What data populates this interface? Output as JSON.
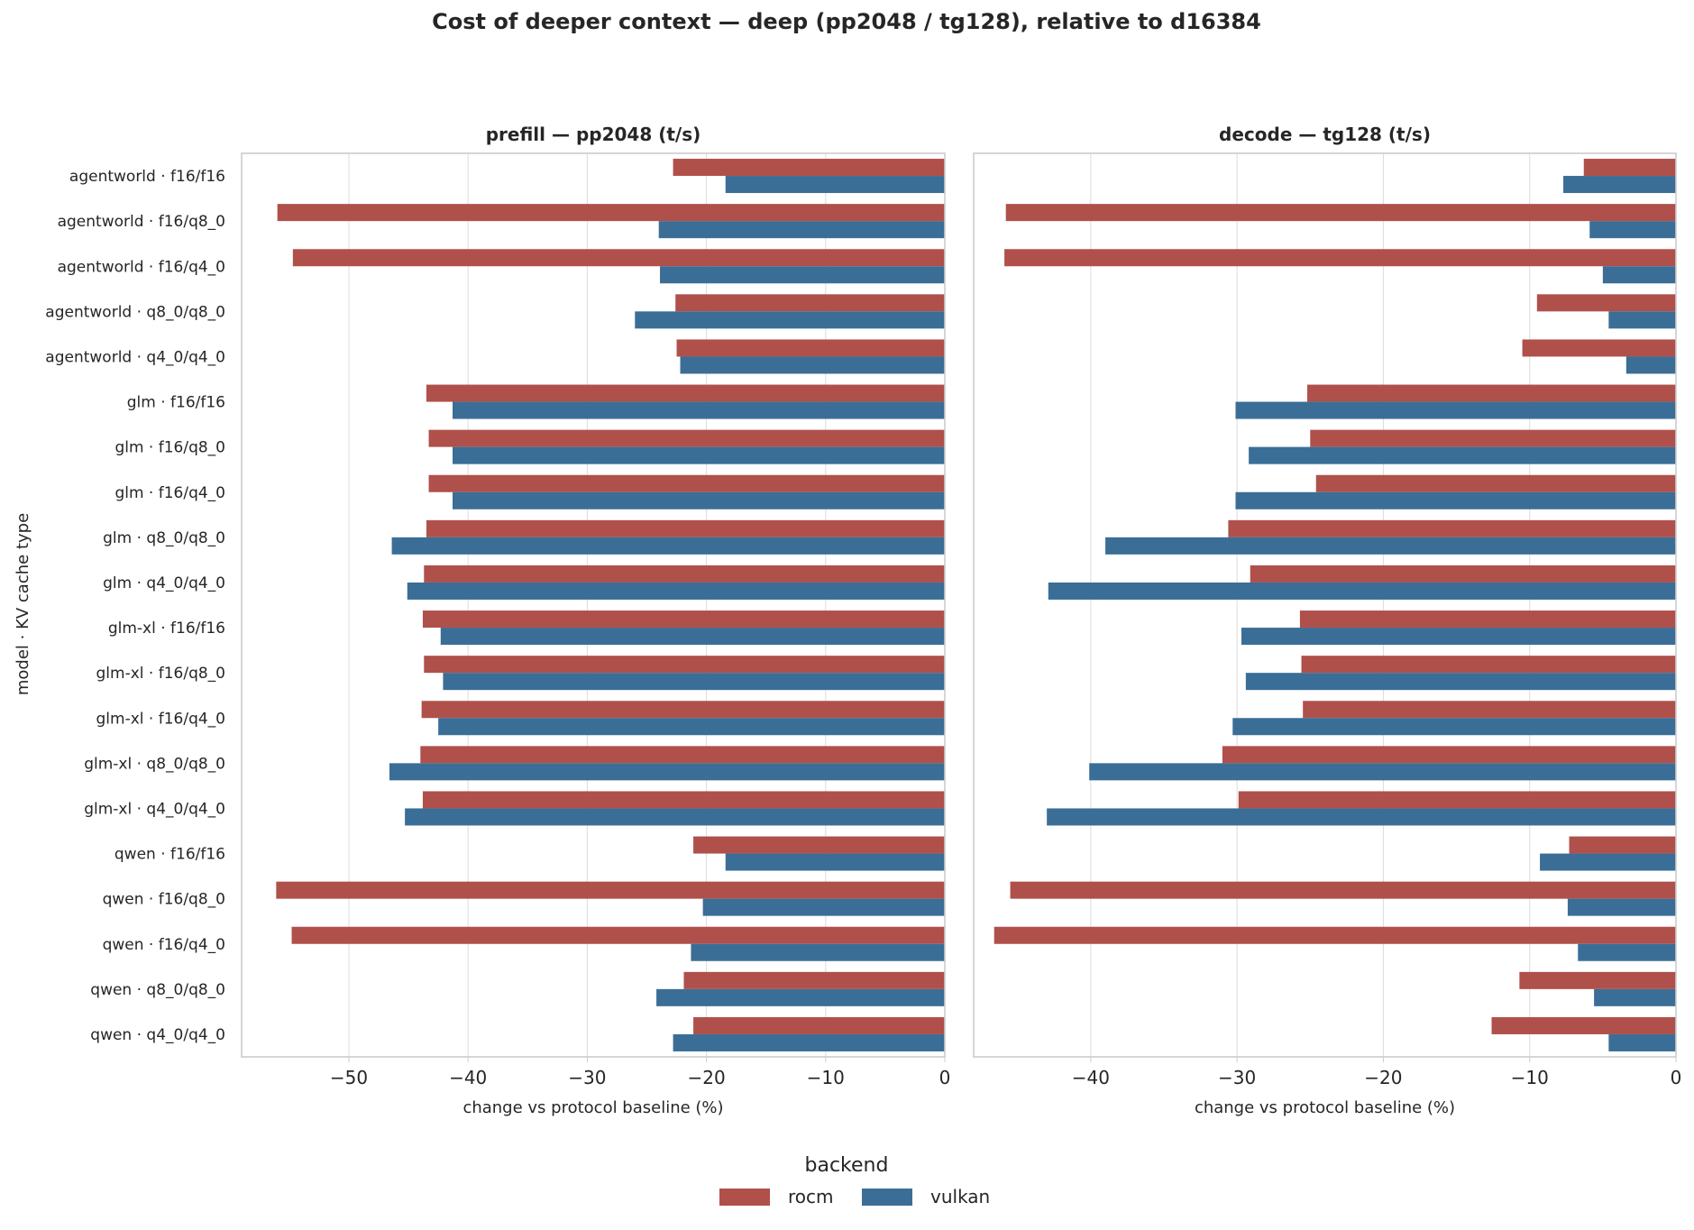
{
  "chart_data": {
    "type": "bar",
    "orientation": "horizontal",
    "title": "Cost of deeper context — deep (pp2048 / tg128), relative to d16384",
    "ylabel": "model · KV cache type",
    "categories": [
      "agentworld · f16/f16",
      "agentworld · f16/q8_0",
      "agentworld · f16/q4_0",
      "agentworld · q8_0/q8_0",
      "agentworld · q4_0/q4_0",
      "glm · f16/f16",
      "glm · f16/q8_0",
      "glm · f16/q4_0",
      "glm · q8_0/q8_0",
      "glm · q4_0/q4_0",
      "glm-xl · f16/f16",
      "glm-xl · f16/q8_0",
      "glm-xl · f16/q4_0",
      "glm-xl · q8_0/q8_0",
      "glm-xl · q4_0/q4_0",
      "qwen · f16/f16",
      "qwen · f16/q8_0",
      "qwen · f16/q4_0",
      "qwen · q8_0/q8_0",
      "qwen · q4_0/q4_0"
    ],
    "legend": {
      "title": "backend",
      "placement": "bottom-center",
      "entries": [
        {
          "name": "rocm",
          "color": "#b0504b"
        },
        {
          "name": "vulkan",
          "color": "#3b6e96"
        }
      ]
    },
    "grid": true,
    "panels": [
      {
        "title": "prefill — pp2048 (t/s)",
        "xlabel": "change vs protocol baseline (%)",
        "xlim": [
          -59,
          0
        ],
        "xticks": [
          -50,
          -40,
          -30,
          -20,
          -10,
          0
        ],
        "xtick_labels": [
          "−50",
          "−40",
          "−30",
          "−20",
          "−10",
          "0"
        ],
        "series": [
          {
            "name": "rocm",
            "values": [
              -22.8,
              -56.0,
              -54.7,
              -22.6,
              -22.5,
              -43.5,
              -43.3,
              -43.3,
              -43.5,
              -43.7,
              -43.8,
              -43.7,
              -43.9,
              -44.0,
              -43.8,
              -21.1,
              -56.1,
              -54.8,
              -21.9,
              -21.1
            ]
          },
          {
            "name": "vulkan",
            "values": [
              -18.4,
              -24.0,
              -23.9,
              -26.0,
              -22.2,
              -41.3,
              -41.3,
              -41.3,
              -46.4,
              -45.1,
              -42.3,
              -42.1,
              -42.5,
              -46.6,
              -45.3,
              -18.4,
              -20.3,
              -21.3,
              -24.2,
              -22.8
            ]
          }
        ]
      },
      {
        "title": "decode — tg128 (t/s)",
        "xlabel": "change vs protocol baseline (%)",
        "xlim": [
          -48,
          0
        ],
        "xticks": [
          -40,
          -30,
          -20,
          -10,
          0
        ],
        "xtick_labels": [
          "−40",
          "−30",
          "−20",
          "−10",
          "0"
        ],
        "series": [
          {
            "name": "rocm",
            "values": [
              -6.3,
              -45.8,
              -45.9,
              -9.5,
              -10.5,
              -25.2,
              -25.0,
              -24.6,
              -30.6,
              -29.1,
              -25.7,
              -25.6,
              -25.5,
              -31.0,
              -29.9,
              -7.3,
              -45.5,
              -46.6,
              -10.7,
              -12.6
            ]
          },
          {
            "name": "vulkan",
            "values": [
              -7.7,
              -5.9,
              -5.0,
              -4.6,
              -3.4,
              -30.1,
              -29.2,
              -30.1,
              -39.0,
              -42.9,
              -29.7,
              -29.4,
              -30.3,
              -40.1,
              -43.0,
              -9.3,
              -7.4,
              -6.7,
              -5.6,
              -4.6
            ]
          }
        ]
      }
    ]
  }
}
